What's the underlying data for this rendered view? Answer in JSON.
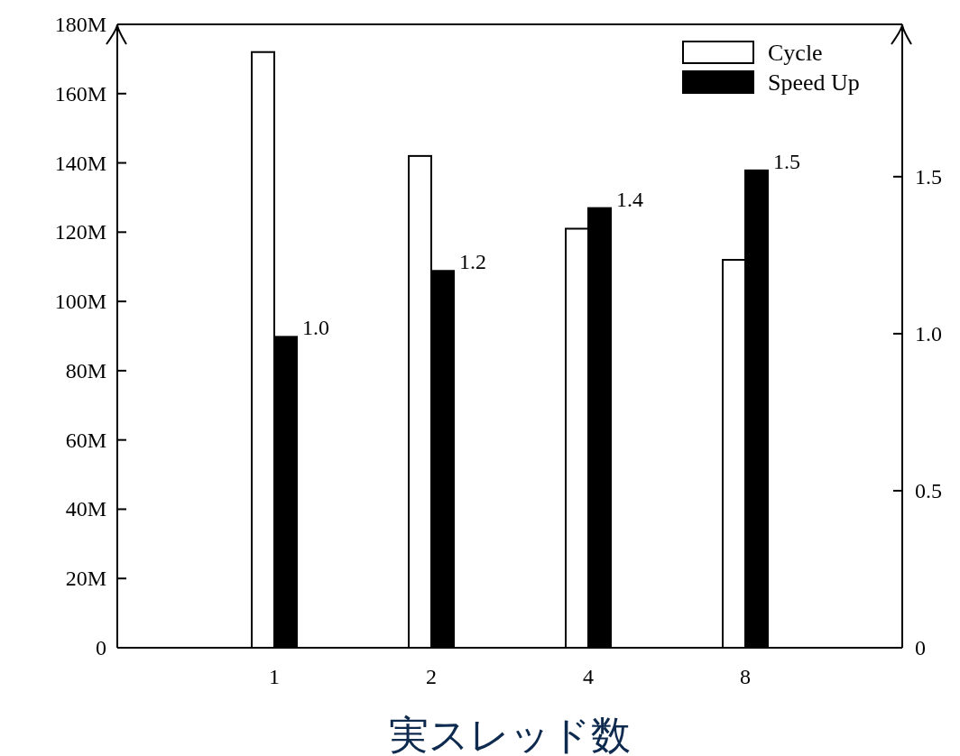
{
  "chart_data": {
    "type": "bar",
    "xlabel": "実スレッド数",
    "categories": [
      "1",
      "2",
      "4",
      "8"
    ],
    "series": [
      {
        "name": "Cycle",
        "color": "#ffffff",
        "values": [
          172000000,
          142000000,
          121000000,
          112000000
        ]
      },
      {
        "name": "Speed Up",
        "color": "#000000",
        "axis": "y2",
        "values": [
          0.99,
          1.2,
          1.4,
          1.52
        ],
        "value_labels": [
          "1.0",
          "1.2",
          "1.4",
          "1.5"
        ]
      }
    ],
    "ylim": [
      0,
      180000000
    ],
    "yticks": [
      0,
      {
        "value": 20000000,
        "label": "20M"
      },
      {
        "value": 40000000,
        "label": "40M"
      },
      {
        "value": 60000000,
        "label": "60M"
      },
      {
        "value": 80000000,
        "label": "80M"
      },
      {
        "value": 100000000,
        "label": "100M"
      },
      {
        "value": 120000000,
        "label": "120M"
      },
      {
        "value": 140000000,
        "label": "140M"
      },
      {
        "value": 160000000,
        "label": "160M"
      },
      {
        "value": 180000000,
        "label": "180M"
      }
    ],
    "y2lim": [
      0,
      1.985
    ],
    "y2ticks": [
      0,
      0.5,
      {
        "value": 1,
        "label": "1.0"
      },
      1.5
    ],
    "legend": "top right"
  }
}
